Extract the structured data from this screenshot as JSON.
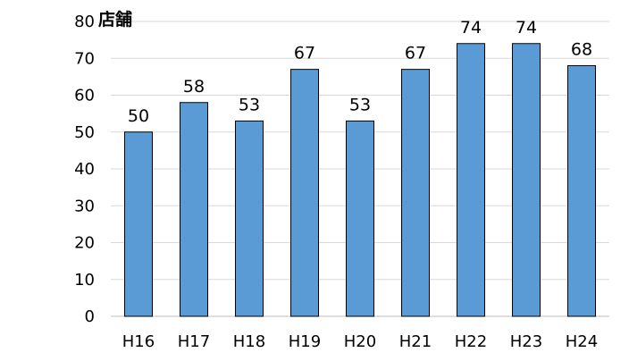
{
  "chart_data": {
    "type": "bar",
    "unit_label": "店舗",
    "categories": [
      "H16",
      "H17",
      "H18",
      "H19",
      "H20",
      "H21",
      "H22",
      "H23",
      "H24"
    ],
    "values": [
      50,
      58,
      53,
      67,
      53,
      67,
      74,
      74,
      68
    ],
    "value_labels": [
      "50",
      "58",
      "53",
      "67",
      "53",
      "67",
      "74",
      "74",
      "68"
    ],
    "ylim": [
      0,
      80
    ],
    "yticks": [
      "0",
      "10",
      "20",
      "30",
      "40",
      "50",
      "60",
      "70",
      "80"
    ],
    "grid": true,
    "legend": "none",
    "bar_color": "#5B9BD5",
    "bar_edge_color": "#000000",
    "grid_color": "#D9D9D9"
  }
}
